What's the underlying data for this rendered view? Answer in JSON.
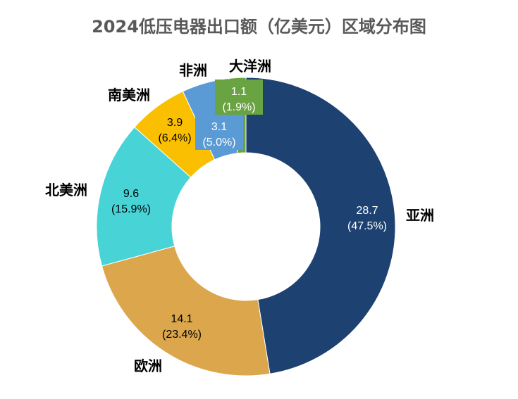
{
  "chart_data": {
    "type": "pie",
    "variant": "donut",
    "title": "2024低压电器出口额（亿美元）区域分布图",
    "categories": [
      "亚洲",
      "欧洲",
      "北美洲",
      "南美洲",
      "非洲",
      "大洋洲"
    ],
    "values": [
      28.7,
      14.1,
      9.6,
      3.9,
      3.1,
      1.1
    ],
    "percent_labels": [
      "(47.5%)",
      "(23.4%)",
      "(15.9%)",
      "(6.4%)",
      "(5.0%)",
      "(1.9%)"
    ],
    "value_labels": [
      "28.7",
      "14.1",
      "9.6",
      "3.9",
      "3.1",
      "1.1"
    ],
    "colors": [
      "#1d4170",
      "#dba64c",
      "#48d4d7",
      "#f9bf00",
      "#5b9bd5",
      "#6aa341"
    ],
    "label_colors": [
      "#ffffff",
      "#000000",
      "#000000",
      "#000000",
      "#ffffff",
      "#ffffff"
    ],
    "start_angle": "top",
    "direction": "clockwise",
    "legend": "none"
  }
}
